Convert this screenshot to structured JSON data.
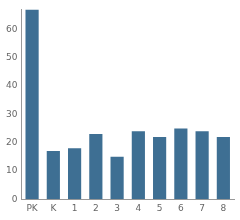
{
  "chart_data": {
    "type": "bar",
    "categories": [
      "PK",
      "K",
      "1",
      "2",
      "3",
      "4",
      "5",
      "6",
      "7",
      "8"
    ],
    "values": [
      67,
      17,
      18,
      23,
      15,
      24,
      22,
      25,
      24,
      22
    ],
    "color": "#3e6f93",
    "ylim": [
      0,
      67
    ],
    "yticks": [
      0,
      10,
      20,
      30,
      40,
      50,
      60
    ],
    "grid": false
  }
}
